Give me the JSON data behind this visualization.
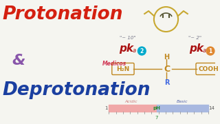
{
  "bg_color": "#f5f5f0",
  "title_protonation": "Protonation",
  "title_amp": "&",
  "title_deprotonation": "Deprotonation",
  "protonation_color": "#d42010",
  "amp_color": "#8855aa",
  "deprotonation_color": "#1a3fa0",
  "pka_color": "#aa1111",
  "approx10_text": "\"~ 10\"",
  "approx2_text": "\"~ 2\"",
  "approx_color": "#777788",
  "h2n_text": "H₂N",
  "bond_color": "#c08820",
  "r_color": "#4169e1",
  "medicos_color": "#cc2244",
  "acidic_bar_color": "#f0a8a8",
  "basic_bar_color": "#a8b8e0",
  "acidic_label": "Acidic",
  "basic_label": "Basic",
  "ph_label": "pH",
  "ph_label_color": "#228833",
  "ph_7_color": "#228833",
  "face_color": "#e8d070",
  "face_line_color": "#c8a830",
  "pka2_num_color": "#00aacc",
  "pka1_num_color": "#e08830"
}
